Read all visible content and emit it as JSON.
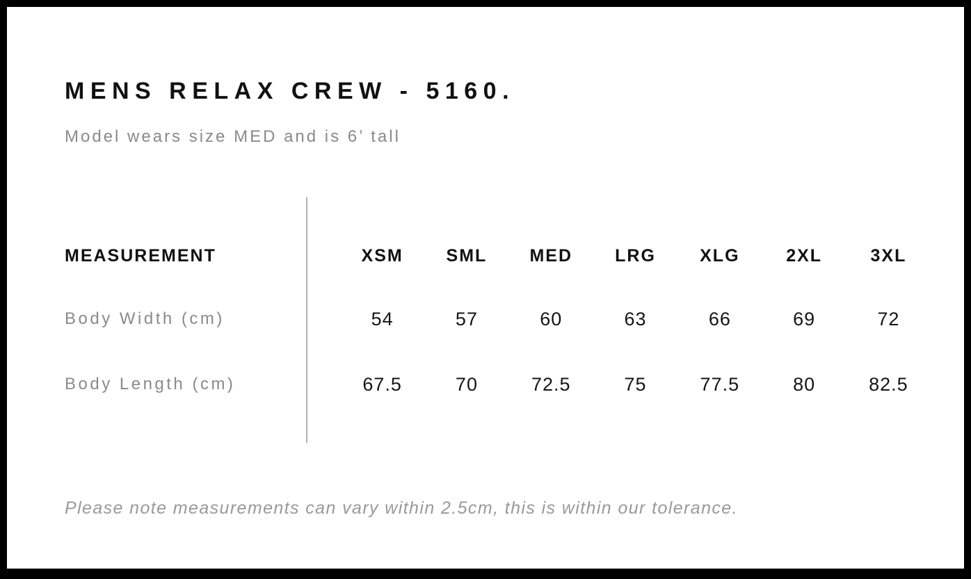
{
  "header": {
    "title": "MENS RELAX CREW - 5160.",
    "subtitle": "Model wears size MED and is 6’ tall"
  },
  "size_chart": {
    "measurement_label": "MEASUREMENT",
    "sizes": [
      "XSM",
      "SML",
      "MED",
      "LRG",
      "XLG",
      "2XL",
      "3XL"
    ],
    "rows": [
      {
        "label": "Body Width (cm)",
        "values": [
          "54",
          "57",
          "60",
          "63",
          "66",
          "69",
          "72"
        ]
      },
      {
        "label": "Body Length (cm)",
        "values": [
          "67.5",
          "70",
          "72.5",
          "75",
          "77.5",
          "80",
          "82.5"
        ]
      }
    ]
  },
  "footer": {
    "note": "Please note measurements can vary within 2.5cm, this is within our tolerance."
  },
  "colors": {
    "frame": "#000000",
    "background": "#ffffff",
    "text_primary": "#111111",
    "text_secondary": "#8a8a8a",
    "note_text": "#999999",
    "divider": "#b0b0b0"
  }
}
